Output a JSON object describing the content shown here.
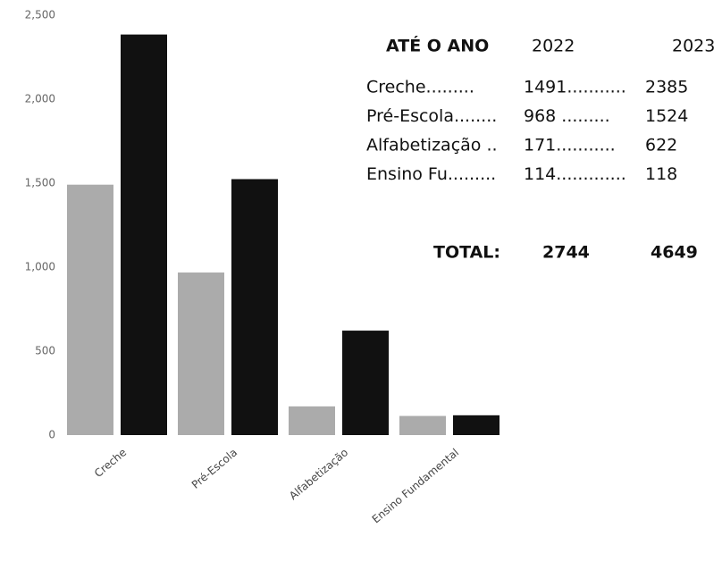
{
  "chart_data": {
    "type": "bar",
    "categories": [
      "Creche",
      "Pré-Escola",
      "Alfabetização",
      "Ensino Fundamental"
    ],
    "series": [
      {
        "color": "#ababab",
        "values": [
          1491,
          968,
          171,
          114
        ]
      },
      {
        "color": "#111111",
        "values": [
          2385,
          1524,
          622,
          118
        ]
      }
    ],
    "ylim": [
      0,
      2500
    ],
    "yticks": [
      0,
      500,
      {
        "value": 1000,
        "label": "1,000"
      },
      {
        "value": 1500,
        "label": "1,500"
      },
      {
        "value": 2000,
        "label": "2,000"
      },
      {
        "value": 2500,
        "label": "2,500"
      }
    ],
    "grid": false
  },
  "table": {
    "heading": "ATÉ O ANO",
    "years": [
      "2022",
      "2023"
    ],
    "rows": [
      [
        "Creche.........",
        "1491...........",
        "2385"
      ],
      [
        "Pré-Escola........",
        "968  .........",
        "1524"
      ],
      [
        "Alfabetização ..",
        "171...........",
        "622"
      ],
      [
        "Ensino Fu.........",
        "114.............",
        "118"
      ]
    ],
    "total_label": "TOTAL:",
    "totals": [
      "2744",
      "4649"
    ]
  }
}
